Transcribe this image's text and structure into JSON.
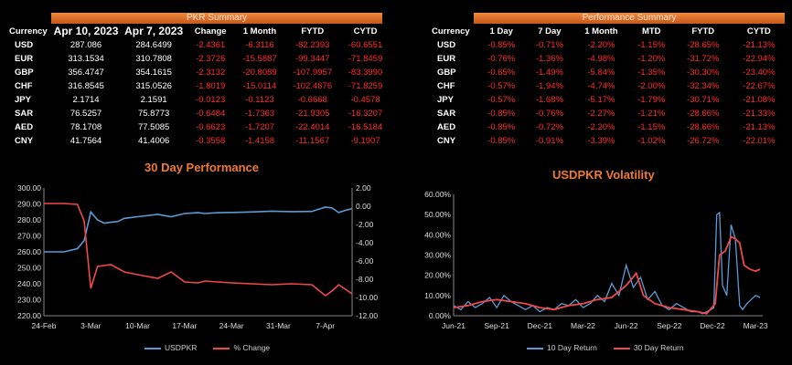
{
  "pkr_summary": {
    "banner": "PKR Summary",
    "headers": [
      "Currency",
      "Apr 10, 2023",
      "Apr 7, 2023",
      "Change",
      "1 Month",
      "FYTD",
      "CYTD"
    ],
    "rows": [
      [
        "USD",
        "287.086",
        "284.6499",
        "-2.4361",
        "-6.3116",
        "-82.2393",
        "-60.6551"
      ],
      [
        "EUR",
        "313.1534",
        "310.7808",
        "-2.3726",
        "-15.5887",
        "-99.3447",
        "-71.8459"
      ],
      [
        "GBP",
        "356.4747",
        "354.1615",
        "-2.3132",
        "-20.8089",
        "-107.9957",
        "-83.3990"
      ],
      [
        "CHF",
        "316.8545",
        "315.0526",
        "-1.8019",
        "-15.0114",
        "-102.4676",
        "-71.8259"
      ],
      [
        "JPY",
        "2.1714",
        "2.1591",
        "-0.0123",
        "-0.1123",
        "-0.6668",
        "-0.4578"
      ],
      [
        "SAR",
        "76.5257",
        "75.8773",
        "-0.6484",
        "-1.7363",
        "-21.9305",
        "-16.3207"
      ],
      [
        "AED",
        "78.1708",
        "77.5085",
        "-0.6623",
        "-1.7207",
        "-22.4014",
        "-16.5184"
      ],
      [
        "CNY",
        "41.7564",
        "41.4006",
        "-0.3558",
        "-1.4158",
        "-11.1567",
        "-9.1907"
      ]
    ]
  },
  "performance_summary": {
    "banner": "Performance Summary",
    "headers": [
      "Currency",
      "1 Day",
      "7 Day",
      "1 Month",
      "MTD",
      "FYTD",
      "CYTD"
    ],
    "rows": [
      [
        "USD",
        "-0.85%",
        "-0.71%",
        "-2.20%",
        "-1.15%",
        "-28.65%",
        "-21.13%"
      ],
      [
        "EUR",
        "-0.76%",
        "-1.36%",
        "-4.98%",
        "-1.20%",
        "-31.72%",
        "-22.94%"
      ],
      [
        "GBP",
        "-0.65%",
        "-1.49%",
        "-5.84%",
        "-1.35%",
        "-30.30%",
        "-23.40%"
      ],
      [
        "CHF",
        "-0.57%",
        "-1.94%",
        "-4.74%",
        "-2.00%",
        "-32.34%",
        "-22.67%"
      ],
      [
        "JPY",
        "-0.57%",
        "-1.68%",
        "-5.17%",
        "-1.79%",
        "-30.71%",
        "-21.08%"
      ],
      [
        "SAR",
        "-0.85%",
        "-0.76%",
        "-2.27%",
        "-1.21%",
        "-28.66%",
        "-21.33%"
      ],
      [
        "AED",
        "-0.85%",
        "-0.72%",
        "-2.20%",
        "-1.15%",
        "-28.66%",
        "-21.13%"
      ],
      [
        "CNY",
        "-0.85%",
        "-0.91%",
        "-3.39%",
        "-1.02%",
        "-26.72%",
        "-22.01%"
      ]
    ]
  },
  "colors": {
    "banner": "#e06a25",
    "title": "#f07a32",
    "negative": "#ff2a2a",
    "blue": "#5b9bd5",
    "red": "#f0484a",
    "grid": "#444444"
  },
  "chart_data": [
    {
      "type": "line",
      "title": "30 Day Performance",
      "x_tick_labels": [
        "24-Feb",
        "3-Mar",
        "10-Mar",
        "17-Mar",
        "24-Mar",
        "31-Mar",
        "7-Apr"
      ],
      "x_range": [
        0,
        46
      ],
      "ylim": [
        220,
        300
      ],
      "y_tick_labels": [
        "220.00",
        "230.00",
        "240.00",
        "250.00",
        "260.00",
        "270.00",
        "280.00",
        "290.00",
        "300.00"
      ],
      "y2lim": [
        -12,
        2
      ],
      "y2_tick_labels": [
        "-12.00",
        "-10.00",
        "-8.00",
        "-6.00",
        "-4.00",
        "-2.00",
        "0.00",
        "2.00"
      ],
      "legend": "bottom",
      "series": [
        {
          "name": "USDPKR",
          "axis": "left",
          "x": [
            0,
            3,
            5,
            6,
            7,
            8,
            9,
            10,
            11,
            12,
            14,
            17,
            19,
            21,
            23,
            24,
            26,
            28,
            31,
            34,
            37,
            40,
            42,
            43,
            44,
            45,
            46
          ],
          "values": [
            260,
            260,
            262,
            267,
            285,
            280,
            278,
            278.5,
            279,
            281,
            282,
            283.5,
            282,
            284,
            284.5,
            284,
            284.5,
            284.7,
            285,
            285.5,
            285.2,
            285.3,
            288,
            287.5,
            284.6,
            286,
            287.1
          ]
        },
        {
          "name": "% Change",
          "axis": "right",
          "x": [
            0,
            3,
            5,
            6,
            7,
            8,
            9,
            10,
            11,
            12,
            14,
            17,
            19,
            21,
            23,
            24,
            26,
            28,
            31,
            34,
            37,
            40,
            42,
            43,
            44,
            45,
            46
          ],
          "values": [
            0.3,
            0.3,
            0.2,
            -1.6,
            -9,
            -6.6,
            -6.5,
            -6.4,
            -6.8,
            -7.2,
            -7.5,
            -7.9,
            -7.2,
            -8.3,
            -8.4,
            -8.2,
            -8.3,
            -8.4,
            -8.5,
            -8.6,
            -8.5,
            -8.6,
            -9.8,
            -9.3,
            -8.6,
            -9.1,
            -9.6
          ]
        }
      ]
    },
    {
      "type": "line",
      "title": "USDPKR Volatility",
      "x_tick_labels": [
        "Jun-21",
        "Sep-21",
        "Dec-21",
        "Mar-22",
        "Jun-22",
        "Sep-22",
        "Dec-22",
        "Mar-23"
      ],
      "x_range": [
        0,
        21.5
      ],
      "ylim": [
        0,
        60
      ],
      "y_tick_labels": [
        "0.00%",
        "10.00%",
        "20.00%",
        "30.00%",
        "40.00%",
        "50.00%",
        "60.00%"
      ],
      "legend": "bottom",
      "series": [
        {
          "name": "10 Day Return",
          "x": [
            0,
            0.5,
            1,
            1.5,
            2,
            2.5,
            3,
            3.5,
            4,
            4.5,
            5,
            5.5,
            6,
            6.5,
            7,
            7.5,
            8,
            8.5,
            9,
            9.5,
            10,
            10.5,
            11,
            11.5,
            12,
            12.5,
            13,
            13.5,
            14,
            14.5,
            15,
            15.5,
            16,
            16.5,
            17,
            17.3,
            17.6,
            17.9,
            18.1,
            18.3,
            18.5,
            18.7,
            19,
            19.3,
            19.6,
            19.9,
            20.1,
            20.4,
            20.7,
            21,
            21.3
          ],
          "values": [
            5,
            3,
            7,
            4,
            6,
            9,
            4,
            10,
            7,
            5,
            3,
            5,
            2,
            4,
            3,
            6,
            5,
            8,
            4,
            6,
            10,
            7,
            16,
            10,
            25,
            14,
            19,
            8,
            12,
            5,
            3,
            6,
            4,
            2,
            2,
            1,
            2,
            3,
            4,
            50,
            51,
            15,
            10,
            45,
            38,
            5,
            3,
            6,
            8,
            10,
            9
          ]
        },
        {
          "name": "30 Day Return",
          "x": [
            0,
            1,
            2,
            3,
            4,
            5,
            6,
            7,
            8,
            9,
            10,
            11,
            12,
            12.7,
            13.2,
            14,
            15,
            16,
            17,
            17.6,
            18.2,
            18.5,
            18.9,
            19.3,
            19.6,
            19.9,
            20.2,
            20.6,
            21,
            21.3
          ],
          "values": [
            4,
            5,
            7,
            8,
            7,
            6,
            4,
            3,
            5,
            6,
            8,
            9,
            15,
            21,
            10,
            6,
            4,
            3,
            2,
            1,
            6,
            30,
            32,
            39,
            38,
            36,
            25,
            23,
            22,
            23
          ]
        }
      ]
    }
  ]
}
